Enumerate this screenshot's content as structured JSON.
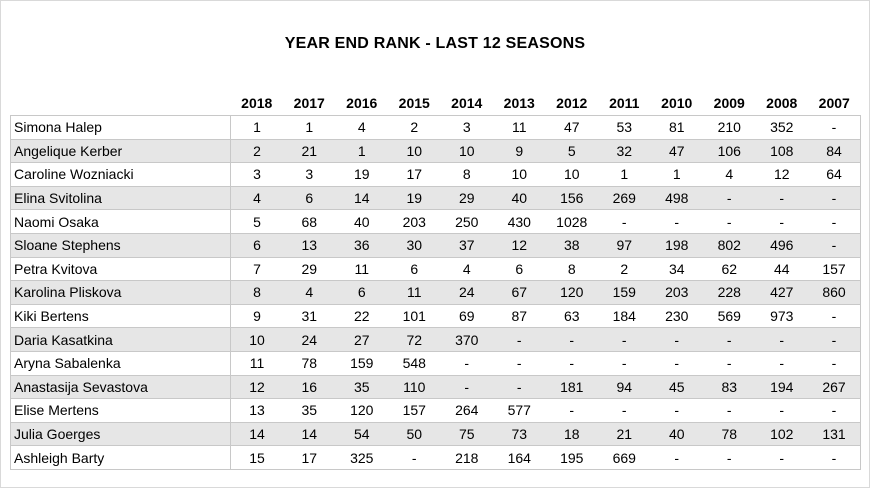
{
  "title": "YEAR END RANK - LAST 12 SEASONS",
  "years": [
    "2018",
    "2017",
    "2016",
    "2015",
    "2014",
    "2013",
    "2012",
    "2011",
    "2010",
    "2009",
    "2008",
    "2007"
  ],
  "rows": [
    {
      "name": "Simona Halep",
      "ranks": [
        "1",
        "1",
        "4",
        "2",
        "3",
        "11",
        "47",
        "53",
        "81",
        "210",
        "352",
        "-"
      ]
    },
    {
      "name": "Angelique Kerber",
      "ranks": [
        "2",
        "21",
        "1",
        "10",
        "10",
        "9",
        "5",
        "32",
        "47",
        "106",
        "108",
        "84"
      ]
    },
    {
      "name": "Caroline Wozniacki",
      "ranks": [
        "3",
        "3",
        "19",
        "17",
        "8",
        "10",
        "10",
        "1",
        "1",
        "4",
        "12",
        "64"
      ]
    },
    {
      "name": "Elina Svitolina",
      "ranks": [
        "4",
        "6",
        "14",
        "19",
        "29",
        "40",
        "156",
        "269",
        "498",
        "-",
        "-",
        "-"
      ]
    },
    {
      "name": "Naomi Osaka",
      "ranks": [
        "5",
        "68",
        "40",
        "203",
        "250",
        "430",
        "1028",
        "-",
        "-",
        "-",
        "-",
        "-"
      ]
    },
    {
      "name": "Sloane Stephens",
      "ranks": [
        "6",
        "13",
        "36",
        "30",
        "37",
        "12",
        "38",
        "97",
        "198",
        "802",
        "496",
        "-"
      ]
    },
    {
      "name": "Petra Kvitova",
      "ranks": [
        "7",
        "29",
        "11",
        "6",
        "4",
        "6",
        "8",
        "2",
        "34",
        "62",
        "44",
        "157"
      ]
    },
    {
      "name": "Karolina Pliskova",
      "ranks": [
        "8",
        "4",
        "6",
        "11",
        "24",
        "67",
        "120",
        "159",
        "203",
        "228",
        "427",
        "860"
      ]
    },
    {
      "name": "Kiki Bertens",
      "ranks": [
        "9",
        "31",
        "22",
        "101",
        "69",
        "87",
        "63",
        "184",
        "230",
        "569",
        "973",
        "-"
      ]
    },
    {
      "name": "Daria Kasatkina",
      "ranks": [
        "10",
        "24",
        "27",
        "72",
        "370",
        "-",
        "-",
        "-",
        "-",
        "-",
        "-",
        "-"
      ]
    },
    {
      "name": "Aryna Sabalenka",
      "ranks": [
        "11",
        "78",
        "159",
        "548",
        "-",
        "-",
        "-",
        "-",
        "-",
        "-",
        "-",
        "-"
      ]
    },
    {
      "name": "Anastasija Sevastova",
      "ranks": [
        "12",
        "16",
        "35",
        "110",
        "-",
        "-",
        "181",
        "94",
        "45",
        "83",
        "194",
        "267"
      ]
    },
    {
      "name": "Elise Mertens",
      "ranks": [
        "13",
        "35",
        "120",
        "157",
        "264",
        "577",
        "-",
        "-",
        "-",
        "-",
        "-",
        "-"
      ]
    },
    {
      "name": "Julia Goerges",
      "ranks": [
        "14",
        "14",
        "54",
        "50",
        "75",
        "73",
        "18",
        "21",
        "40",
        "78",
        "102",
        "131"
      ]
    },
    {
      "name": "Ashleigh Barty",
      "ranks": [
        "15",
        "17",
        "325",
        "-",
        "218",
        "164",
        "195",
        "669",
        "-",
        "-",
        "-",
        "-"
      ]
    }
  ]
}
